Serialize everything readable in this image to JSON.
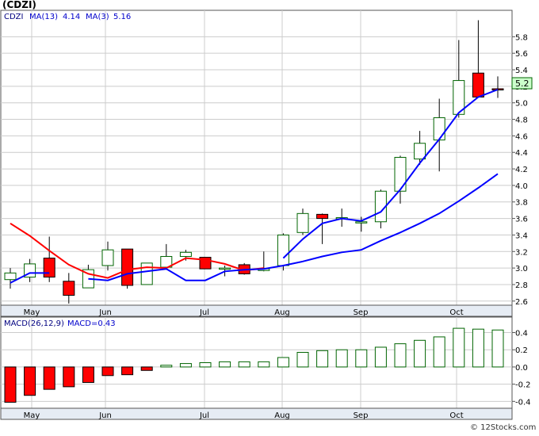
{
  "title": "(CDZI)",
  "legend": {
    "ticker": "CDZI",
    "ma13_label": "MA(13)",
    "ma13_value": "4.14",
    "ma3_label": "MA(3)",
    "ma3_value": "5.16"
  },
  "macd_legend": {
    "params": "MACD(26,12,9)",
    "value_label": "MACD=0.43"
  },
  "last_price_badge": "5.2",
  "watermark": "© 12Stocks.com",
  "colors": {
    "up_candle_outline": "#006400",
    "down_candle_fill": "#ff0000",
    "ma13_line": "#0000ff",
    "ma3_line": "#ff0000",
    "macd_positive": "#006400",
    "macd_negative": "#ff0000",
    "price_badge_bg": "#ccffcc"
  },
  "chart_data": [
    {
      "type": "candlestick",
      "title": "(CDZI)",
      "ylim": [
        2.55,
        6.12
      ],
      "x_tick_labels": [
        "May",
        "Jun",
        "Jul",
        "Aug",
        "Sep",
        "Oct"
      ],
      "y_tick_labels": [
        "2.6",
        "2.8",
        "3.0",
        "3.2",
        "3.4",
        "3.6",
        "3.8",
        "4.0",
        "4.2",
        "4.4",
        "4.6",
        "4.8",
        "5.0",
        "5.2",
        "5.4",
        "5.6",
        "5.8"
      ],
      "grid": true,
      "candles": [
        {
          "period": 1,
          "open": 2.86,
          "close": 2.94,
          "high": 3.0,
          "low": 2.75
        },
        {
          "period": 2,
          "open": 2.89,
          "close": 3.05,
          "high": 3.11,
          "low": 2.83
        },
        {
          "period": 3,
          "open": 3.12,
          "close": 2.89,
          "high": 3.38,
          "low": 2.83
        },
        {
          "period": 4,
          "open": 2.84,
          "close": 2.67,
          "high": 2.94,
          "low": 2.57
        },
        {
          "period": 5,
          "open": 2.76,
          "close": 2.98,
          "high": 3.04,
          "low": 2.76
        },
        {
          "period": 6,
          "open": 3.03,
          "close": 3.22,
          "high": 3.32,
          "low": 2.97
        },
        {
          "period": 7,
          "open": 3.23,
          "close": 2.79,
          "high": 3.23,
          "low": 2.75
        },
        {
          "period": 8,
          "open": 2.8,
          "close": 3.06,
          "high": 3.06,
          "low": 2.8
        },
        {
          "period": 9,
          "open": 3.01,
          "close": 3.14,
          "high": 3.29,
          "low": 3.01
        },
        {
          "period": 10,
          "open": 3.14,
          "close": 3.19,
          "high": 3.22,
          "low": 3.09
        },
        {
          "period": 11,
          "open": 3.13,
          "close": 2.99,
          "high": 3.13,
          "low": 2.99
        },
        {
          "period": 12,
          "open": 2.99,
          "close": 3.0,
          "high": 3.03,
          "low": 2.9
        },
        {
          "period": 13,
          "open": 3.04,
          "close": 2.93,
          "high": 3.06,
          "low": 2.92
        },
        {
          "period": 14,
          "open": 2.97,
          "close": 2.99,
          "high": 3.2,
          "low": 2.96
        },
        {
          "period": 15,
          "open": 3.03,
          "close": 3.4,
          "high": 3.42,
          "low": 2.97
        },
        {
          "period": 16,
          "open": 3.43,
          "close": 3.66,
          "high": 3.72,
          "low": 3.4
        },
        {
          "period": 17,
          "open": 3.65,
          "close": 3.6,
          "high": 3.66,
          "low": 3.29
        },
        {
          "period": 18,
          "open": 3.6,
          "close": 3.61,
          "high": 3.72,
          "low": 3.5
        },
        {
          "period": 19,
          "open": 3.55,
          "close": 3.56,
          "high": 3.62,
          "low": 3.44
        },
        {
          "period": 20,
          "open": 3.56,
          "close": 3.93,
          "high": 3.95,
          "low": 3.48
        },
        {
          "period": 21,
          "open": 3.93,
          "close": 4.34,
          "high": 4.36,
          "low": 3.78
        },
        {
          "period": 22,
          "open": 4.32,
          "close": 4.51,
          "high": 4.66,
          "low": 4.25
        },
        {
          "period": 23,
          "open": 4.55,
          "close": 4.82,
          "high": 5.05,
          "low": 4.17
        },
        {
          "period": 24,
          "open": 4.86,
          "close": 5.27,
          "high": 5.76,
          "low": 4.82
        },
        {
          "period": 25,
          "open": 5.36,
          "close": 5.07,
          "high": 6.0,
          "low": 5.07
        },
        {
          "period": 26,
          "open": 5.17,
          "close": 5.16,
          "high": 5.32,
          "low": 5.06
        }
      ],
      "ma13": [
        2.82,
        2.94,
        2.94,
        null,
        2.87,
        2.85,
        2.93,
        2.96,
        2.99,
        2.85,
        2.85,
        2.96,
        2.98,
        2.99,
        3.03,
        3.08,
        3.14,
        3.19,
        3.22,
        3.33,
        3.43,
        3.54,
        3.66,
        3.81,
        3.97,
        4.14
      ],
      "ma3": [
        3.54,
        3.39,
        3.21,
        3.04,
        2.93,
        2.88,
        2.98,
        3.01,
        3.0,
        3.12,
        3.1,
        3.05,
        2.97,
        3.0,
        null,
        null,
        null,
        null,
        null,
        null,
        null,
        null,
        null,
        null,
        null,
        null
      ],
      "ma_blue_overlay": [
        null,
        null,
        null,
        null,
        null,
        null,
        null,
        null,
        null,
        null,
        null,
        null,
        null,
        null,
        3.12,
        3.35,
        3.54,
        3.6,
        3.57,
        3.68,
        3.95,
        4.27,
        4.56,
        4.88,
        5.07,
        5.16
      ]
    },
    {
      "type": "bar",
      "title": "MACD(26,12,9)",
      "ylim": [
        -0.48,
        0.58
      ],
      "y_tick_labels": [
        "-0.4",
        "-0.2",
        "0.0",
        "0.2",
        "0.4"
      ],
      "x_tick_labels": [
        "May",
        "Jun",
        "Jul",
        "Aug",
        "Sep",
        "Oct"
      ],
      "values": [
        -0.41,
        -0.33,
        -0.26,
        -0.23,
        -0.18,
        -0.1,
        -0.09,
        -0.04,
        0.02,
        0.04,
        0.05,
        0.06,
        0.06,
        0.06,
        0.11,
        0.17,
        0.19,
        0.2,
        0.2,
        0.23,
        0.27,
        0.31,
        0.35,
        0.45,
        0.44,
        0.43
      ]
    }
  ]
}
